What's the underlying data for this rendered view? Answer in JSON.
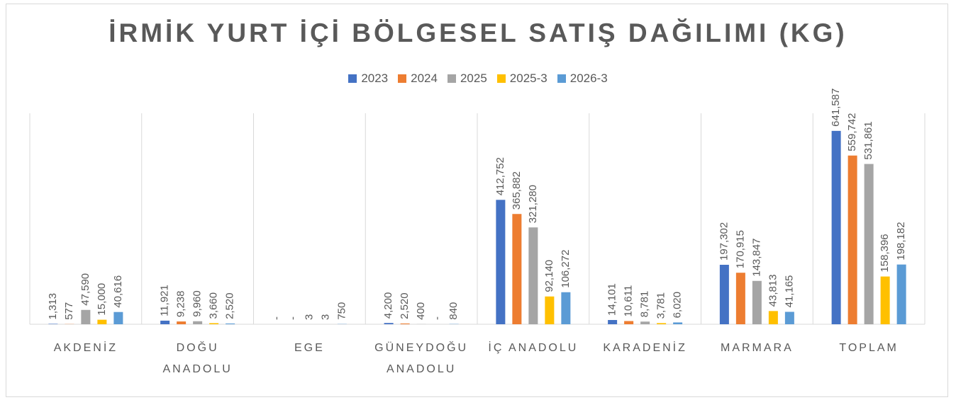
{
  "chart_data": {
    "type": "bar",
    "title": "İRMİK YURT İÇİ BÖLGESEL SATIŞ DAĞILIMI (KG)",
    "categories": [
      "AKDENİZ",
      "DOĞU ANADOLU",
      "EGE",
      "GÜNEYDOĞU ANADOLU",
      "İÇ ANADOLU",
      "KARADENİZ",
      "MARMARA",
      "TOPLAM"
    ],
    "series": [
      {
        "name": "2023",
        "color": "#4472c4",
        "values": [
          1313,
          11921,
          0,
          4200,
          412752,
          14101,
          197302,
          641587
        ],
        "value_labels": [
          "1,313",
          "11,921",
          "-",
          "4,200",
          "412,752",
          "14,101",
          "197,302",
          "641,587"
        ]
      },
      {
        "name": "2024",
        "color": "#ed7d31",
        "values": [
          577,
          9238,
          0,
          2520,
          365882,
          10611,
          170915,
          559742
        ],
        "value_labels": [
          "577",
          "9,238",
          "-",
          "2,520",
          "365,882",
          "10,611",
          "170,915",
          "559,742"
        ]
      },
      {
        "name": "2025",
        "color": "#a5a5a5",
        "values": [
          47590,
          9960,
          3,
          400,
          321280,
          8781,
          143847,
          531861
        ],
        "value_labels": [
          "47,590",
          "9,960",
          "3",
          "400",
          "321,280",
          "8,781",
          "143,847",
          "531,861"
        ]
      },
      {
        "name": "2025-3",
        "color": "#ffc000",
        "values": [
          15000,
          3660,
          3,
          0,
          92140,
          3781,
          43813,
          158396
        ],
        "value_labels": [
          "15,000",
          "3,660",
          "3",
          "-",
          "92,140",
          "3,781",
          "43,813",
          "158,396"
        ]
      },
      {
        "name": "2026-3",
        "color": "#5b9bd5",
        "values": [
          40616,
          2520,
          750,
          840,
          106272,
          6020,
          41165,
          198182
        ],
        "value_labels": [
          "40,616",
          "2,520",
          "750",
          "840",
          "106,272",
          "6,020",
          "41,165",
          "198,182"
        ]
      }
    ],
    "ylim": [
      0,
      700000
    ],
    "legend": "top"
  }
}
